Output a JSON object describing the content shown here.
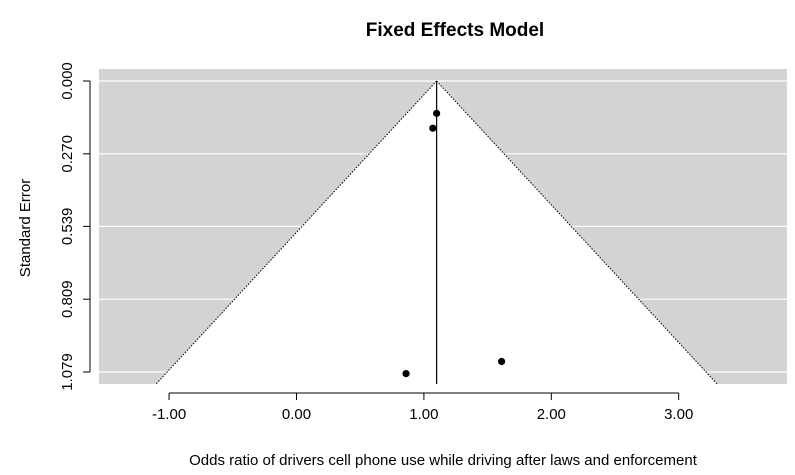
{
  "chart_data": {
    "type": "scatter",
    "title": "Fixed Effects Model",
    "xlabel": "Odds ratio of drivers cell phone use while driving after laws and enforcement",
    "ylabel": "Standard Error",
    "xlim": [
      -1.55,
      3.85
    ],
    "ylim": [
      1.079,
      0.0
    ],
    "x_ticks": [
      -1.0,
      0.0,
      1.0,
      2.0,
      3.0
    ],
    "x_tick_labels": [
      "-1.00",
      "0.00",
      "1.00",
      "2.00",
      "3.00"
    ],
    "y_ticks": [
      0.0,
      0.27,
      0.539,
      0.809,
      1.079
    ],
    "y_tick_labels": [
      "0.000",
      "0.270",
      "0.539",
      "0.809",
      "1.079"
    ],
    "y_reversed": true,
    "pooled_estimate": 1.1,
    "funnel_multiplier": 1.96,
    "grid": true,
    "points": [
      {
        "x": 1.1,
        "y": 0.12
      },
      {
        "x": 1.07,
        "y": 0.175
      },
      {
        "x": 0.86,
        "y": 1.085
      },
      {
        "x": 1.61,
        "y": 1.04
      }
    ],
    "colors": {
      "panel_background": "#d3d3d3",
      "funnel_fill": "#ffffff",
      "grid_line": "#ffffff",
      "point": "#000000",
      "axis": "#000000"
    }
  }
}
